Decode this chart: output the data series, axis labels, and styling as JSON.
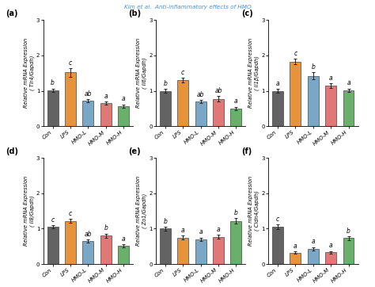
{
  "title": "Kim et al.  Anti-inflammatory effects of HMO",
  "title_color": "#4a90d9",
  "panels": [
    {
      "label": "(a)",
      "ylabel": "Relative mRNA Expression\n( Tlr4/Gapdh)",
      "values": [
        1.02,
        1.52,
        0.72,
        0.65,
        0.57
      ],
      "errors": [
        0.05,
        0.12,
        0.05,
        0.05,
        0.05
      ],
      "sig_labels": [
        "b",
        "c",
        "ab",
        "a",
        "a"
      ],
      "ylim": [
        0,
        3
      ]
    },
    {
      "label": "(b)",
      "ylabel": "Relative mRNA Expression\n( Il6/Gapdh)",
      "values": [
        1.0,
        1.3,
        0.7,
        0.77,
        0.5
      ],
      "errors": [
        0.05,
        0.07,
        0.05,
        0.08,
        0.05
      ],
      "sig_labels": [
        "b",
        "c",
        "ab",
        "ab",
        "a"
      ],
      "ylim": [
        0,
        3
      ]
    },
    {
      "label": "(c)",
      "ylabel": "Relative mRNA Expression\n( Il1β/Gapdh)",
      "values": [
        1.0,
        1.83,
        1.42,
        1.15,
        1.02
      ],
      "errors": [
        0.05,
        0.08,
        0.1,
        0.06,
        0.05
      ],
      "sig_labels": [
        "a",
        "c",
        "b",
        "a",
        "a"
      ],
      "ylim": [
        0,
        3
      ]
    },
    {
      "label": "(d)",
      "ylabel": "Relative mRNA Expression\n( Il8/Gapdh)",
      "values": [
        1.05,
        1.22,
        0.65,
        0.8,
        0.52
      ],
      "errors": [
        0.05,
        0.06,
        0.05,
        0.06,
        0.04
      ],
      "sig_labels": [
        "c",
        "c",
        "ab",
        "b",
        "a"
      ],
      "ylim": [
        0,
        3
      ]
    },
    {
      "label": "(e)",
      "ylabel": "Relative mRNA Expression\n( Zo1/Gapdh)",
      "values": [
        1.0,
        0.75,
        0.7,
        0.77,
        1.22
      ],
      "errors": [
        0.05,
        0.05,
        0.05,
        0.06,
        0.08
      ],
      "sig_labels": [
        "b",
        "a",
        "a",
        "a",
        "b"
      ],
      "ylim": [
        0,
        3
      ]
    },
    {
      "label": "(f)",
      "ylabel": "Relative mRNA Expression\n( Cldn4/Gapdh)",
      "values": [
        1.05,
        0.32,
        0.43,
        0.33,
        0.73
      ],
      "errors": [
        0.06,
        0.03,
        0.05,
        0.04,
        0.06
      ],
      "sig_labels": [
        "c",
        "a",
        "a",
        "a",
        "b"
      ],
      "ylim": [
        0,
        3
      ]
    }
  ],
  "categories": [
    "Con",
    "LPS",
    "HMO-L",
    "HMO-M",
    "HMO-H"
  ],
  "bar_colors": [
    "#636363",
    "#E8923A",
    "#7BA7C7",
    "#E07878",
    "#6AAF6A"
  ],
  "bar_edge_color": "#222222",
  "error_color": "#222222",
  "sig_fontsize": 5.5,
  "tick_fontsize": 5.0,
  "panel_label_fontsize": 7.0,
  "ylabel_fontsize": 4.8,
  "title_fontsize": 5.2,
  "bar_linewidth": 0.4,
  "bar_width": 0.62
}
